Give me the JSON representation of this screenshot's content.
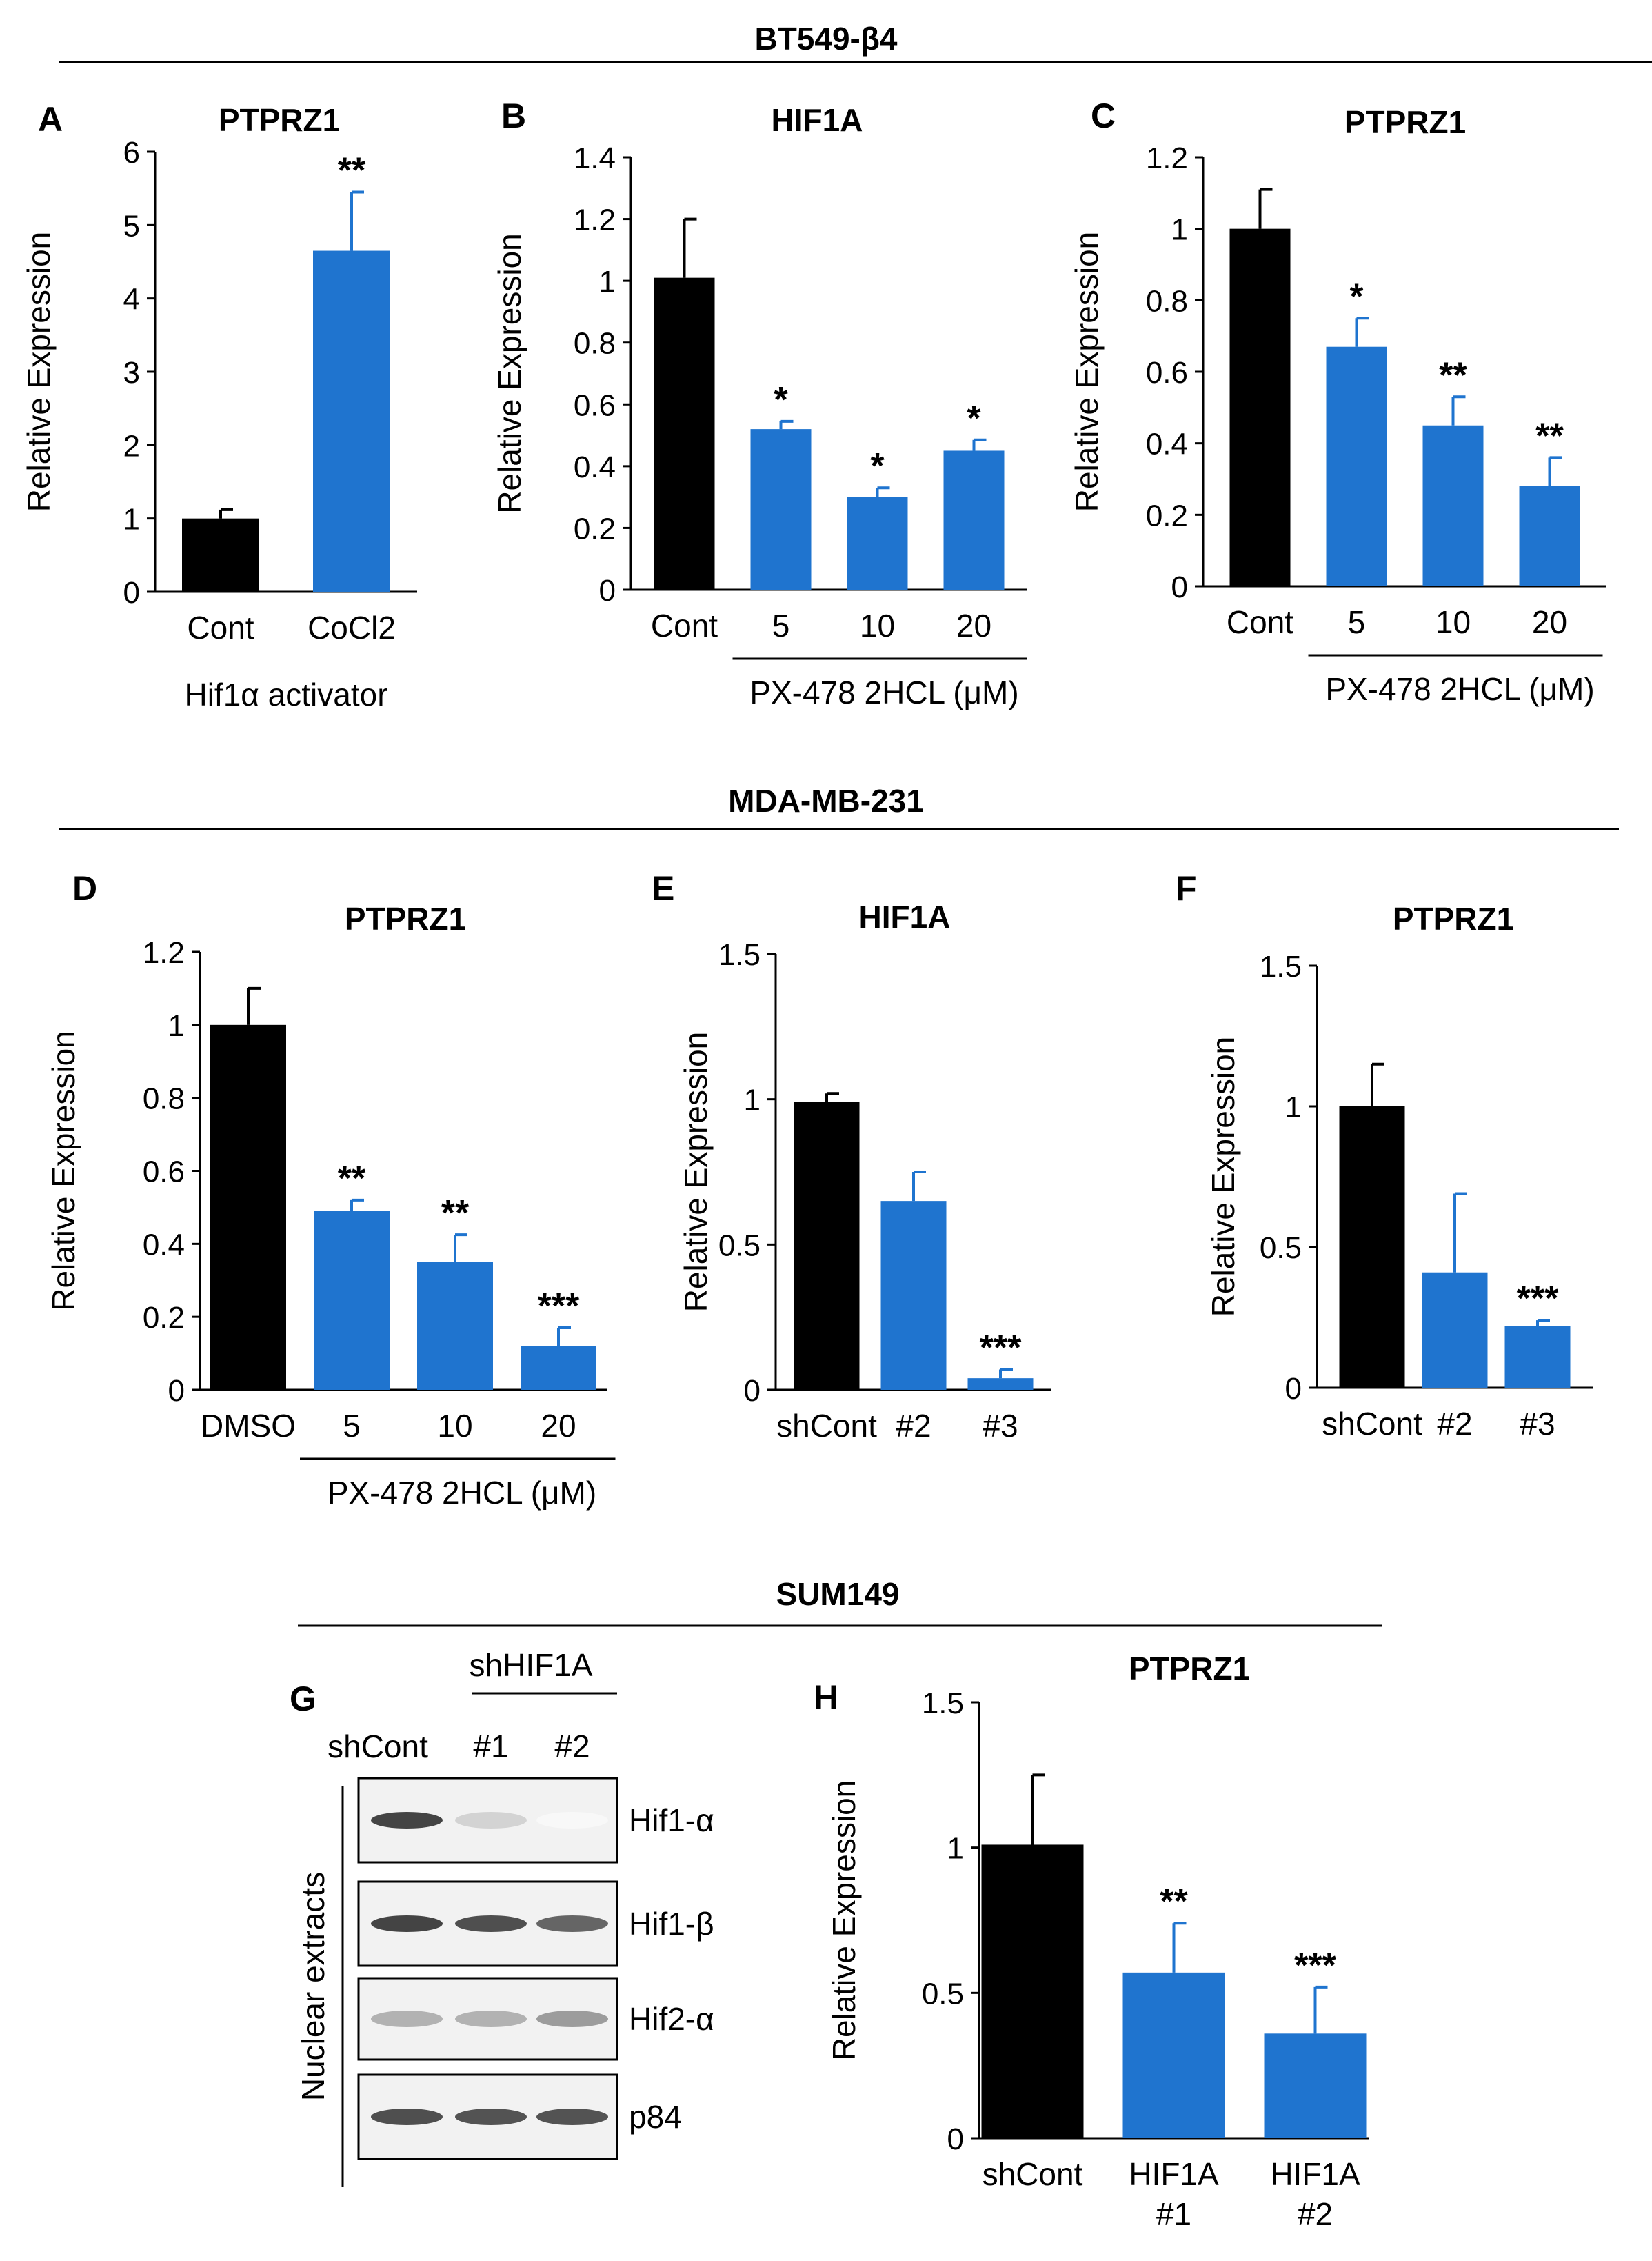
{
  "colors": {
    "control": "#000000",
    "treated": "#1f74cf",
    "axis": "#000000"
  },
  "sections": [
    {
      "title": "BT549-β4"
    },
    {
      "title": "MDA-MB-231"
    },
    {
      "title": "SUM149"
    }
  ],
  "chart_data": [
    {
      "id": "A",
      "panel": "A",
      "type": "bar",
      "title": "PTPRZ1",
      "ylabel": "Relative Expression",
      "ylim": [
        0,
        6
      ],
      "yticks": [
        0,
        1,
        2,
        3,
        4,
        5,
        6
      ],
      "categories": [
        "Cont",
        "CoCl2"
      ],
      "values": [
        1.0,
        4.65
      ],
      "errors": [
        0.12,
        0.8
      ],
      "sig": [
        "",
        "**"
      ],
      "group_label": "Hif1α activator",
      "group_range": [
        0,
        1
      ],
      "group_line": false
    },
    {
      "id": "B",
      "panel": "B",
      "type": "bar",
      "title": "HIF1A",
      "ylabel": "Relative Expression",
      "ylim": [
        0,
        1.4
      ],
      "yticks": [
        0,
        0.2,
        0.4,
        0.6,
        0.8,
        1,
        1.2,
        1.4
      ],
      "categories": [
        "Cont",
        "5",
        "10",
        "20"
      ],
      "values": [
        1.01,
        0.52,
        0.3,
        0.45
      ],
      "errors": [
        0.19,
        0.025,
        0.03,
        0.035
      ],
      "sig": [
        "",
        "*",
        "*",
        "*"
      ],
      "group_label": "PX-478 2HCL (μM)",
      "group_range": [
        1,
        3
      ],
      "group_line": true
    },
    {
      "id": "C",
      "panel": "C",
      "type": "bar",
      "title": "PTPRZ1",
      "ylabel": "Relative Expression",
      "ylim": [
        0,
        1.2
      ],
      "yticks": [
        0,
        0.2,
        0.4,
        0.6,
        0.8,
        1,
        1.2
      ],
      "categories": [
        "Cont",
        "5",
        "10",
        "20"
      ],
      "values": [
        1.0,
        0.67,
        0.45,
        0.28
      ],
      "errors": [
        0.11,
        0.08,
        0.08,
        0.08
      ],
      "sig": [
        "",
        "*",
        "**",
        "**"
      ],
      "group_label": "PX-478 2HCL (μM)",
      "group_range": [
        1,
        3
      ],
      "group_line": true
    },
    {
      "id": "D",
      "panel": "D",
      "type": "bar",
      "title": "PTPRZ1",
      "ylabel": "Relative Expression",
      "ylim": [
        0,
        1.2
      ],
      "yticks": [
        0,
        0.2,
        0.4,
        0.6,
        0.8,
        1,
        1.2
      ],
      "categories": [
        "DMSO",
        "5",
        "10",
        "20"
      ],
      "values": [
        1.0,
        0.49,
        0.35,
        0.12
      ],
      "errors": [
        0.1,
        0.03,
        0.075,
        0.05
      ],
      "sig": [
        "",
        "**",
        "**",
        "***"
      ],
      "group_label": "PX-478 2HCL (μM)",
      "group_range": [
        1,
        3
      ],
      "group_line": true
    },
    {
      "id": "E",
      "panel": "E",
      "type": "bar",
      "title": "HIF1A",
      "ylabel": "Relative Expression",
      "ylim": [
        0,
        1.5
      ],
      "yticks": [
        0,
        0.5,
        1,
        1.5
      ],
      "categories": [
        "shCont",
        "#2",
        "#3"
      ],
      "values": [
        0.99,
        0.65,
        0.04
      ],
      "errors": [
        0.03,
        0.1,
        0.03
      ],
      "sig": [
        "",
        "",
        "***"
      ]
    },
    {
      "id": "F",
      "panel": "F",
      "type": "bar",
      "title": "PTPRZ1",
      "ylabel": "Relative Expression",
      "ylim": [
        0,
        1.5
      ],
      "yticks": [
        0,
        0.5,
        1,
        1.5
      ],
      "categories": [
        "shCont",
        "#2",
        "#3"
      ],
      "values": [
        1.0,
        0.41,
        0.22
      ],
      "errors": [
        0.15,
        0.28,
        0.02
      ],
      "sig": [
        "",
        "",
        "***"
      ]
    },
    {
      "id": "H",
      "panel": "H",
      "type": "bar",
      "title": "PTPRZ1",
      "ylabel": "Relative Expression",
      "ylim": [
        0,
        1.5
      ],
      "yticks": [
        0,
        0.5,
        1,
        1.5
      ],
      "categories": [
        [
          "shCont"
        ],
        [
          "HIF1A",
          "#1"
        ],
        [
          "HIF1A",
          "#2"
        ]
      ],
      "values": [
        1.01,
        0.57,
        0.36
      ],
      "errors": [
        0.24,
        0.17,
        0.16
      ],
      "sig": [
        "",
        "**",
        "***"
      ]
    }
  ],
  "blot": {
    "panel": "G",
    "group_label": "shHIF1A",
    "lanes": [
      "shCont",
      "#1",
      "#2"
    ],
    "side_label": "Nuclear extracts",
    "rows": [
      {
        "label": "Hif1-α",
        "intensity": [
          0.85,
          0.2,
          0.03
        ]
      },
      {
        "label": "Hif1-β",
        "intensity": [
          0.85,
          0.8,
          0.7
        ]
      },
      {
        "label": "Hif2-α",
        "intensity": [
          0.35,
          0.35,
          0.45
        ]
      },
      {
        "label": "p84",
        "intensity": [
          0.8,
          0.78,
          0.78
        ]
      }
    ]
  }
}
